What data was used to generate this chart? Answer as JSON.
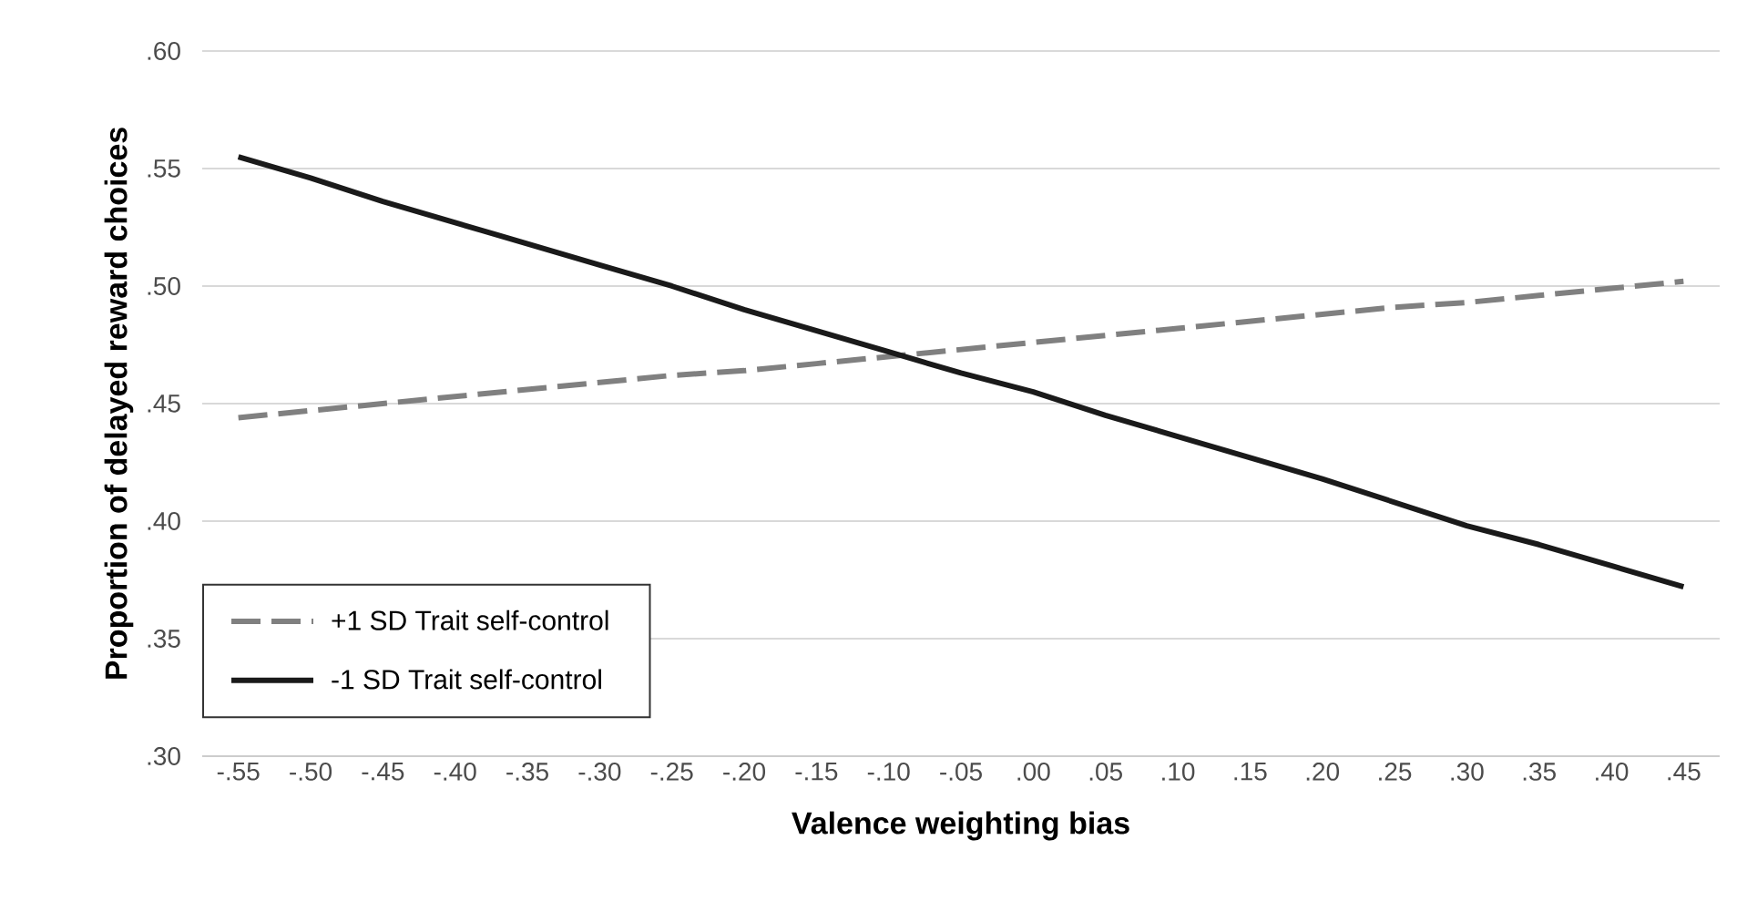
{
  "chart_data": {
    "type": "line",
    "xlabel": "Valence weighting bias",
    "ylabel": "Proportion of delayed reward choices",
    "categories": [
      "-.55",
      "-.50",
      "-.45",
      "-.40",
      "-.35",
      "-.30",
      "-.25",
      "-.20",
      "-.15",
      "-.10",
      "-.05",
      ".00",
      ".05",
      ".10",
      ".15",
      ".20",
      ".25",
      ".30",
      ".35",
      ".40",
      ".45"
    ],
    "series": [
      {
        "name": "+1 SD Trait self-control",
        "color": "#808080",
        "line_style": "dashed",
        "values": [
          0.444,
          0.447,
          0.45,
          0.453,
          0.456,
          0.459,
          0.462,
          0.464,
          0.467,
          0.47,
          0.473,
          0.476,
          0.479,
          0.482,
          0.485,
          0.488,
          0.491,
          0.493,
          0.496,
          0.499,
          0.502
        ]
      },
      {
        "name": "-1 SD Trait self-control",
        "color": "#1a1a1a",
        "line_style": "solid",
        "values": [
          0.555,
          0.546,
          0.536,
          0.527,
          0.518,
          0.509,
          0.5,
          0.49,
          0.481,
          0.472,
          0.463,
          0.455,
          0.445,
          0.436,
          0.427,
          0.418,
          0.408,
          0.398,
          0.39,
          0.381,
          0.372
        ]
      }
    ],
    "ylim": [
      0.3,
      0.6
    ],
    "yticks": [
      {
        "value": 0.3,
        "label": ".30"
      },
      {
        "value": 0.35,
        "label": ".35"
      },
      {
        "value": 0.4,
        "label": ".40"
      },
      {
        "value": 0.45,
        "label": ".45"
      },
      {
        "value": 0.5,
        "label": ".50"
      },
      {
        "value": 0.55,
        "label": ".55"
      },
      {
        "value": 0.6,
        "label": ".60"
      }
    ],
    "grid": "y",
    "legend": "bottom left",
    "marker": "none"
  }
}
